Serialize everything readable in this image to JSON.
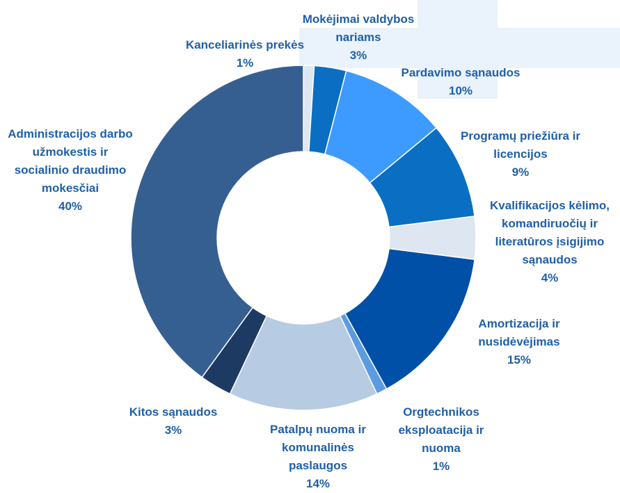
{
  "chart_data": {
    "type": "donut",
    "categories": [
      "Kanceliarinės prekės",
      "Mokėjimai valdybos nariams",
      "Pardavimo sąnaudos",
      "Programų priežiūra ir licencijos",
      "Kvalifikacijos kėlimo, komandiruočių ir literatūros įsigijimo sąnaudos",
      "Amortizacija ir nusidėvėjimas",
      "Orgtechnikos eksploatacija ir nuoma",
      "Patalpų nuoma ir komunalinės paslaugos",
      "Kitos sąnaudos",
      "Administracijos darbo užmokestis ir socialinio draudimo mokesčiai"
    ],
    "values": [
      1,
      3,
      10,
      9,
      4,
      15,
      1,
      14,
      3,
      40
    ],
    "value_labels": [
      "1%",
      "3%",
      "10%",
      "9%",
      "4%",
      "15%",
      "1%",
      "14%",
      "3%",
      "40%"
    ],
    "colors": [
      "#dde6f1",
      "#0a6fc2",
      "#3d9bff",
      "#0a6fc2",
      "#dde6f1",
      "#0050a8",
      "#5b9be0",
      "#b7cbe3",
      "#1d3a63",
      "#365f91"
    ]
  }
}
